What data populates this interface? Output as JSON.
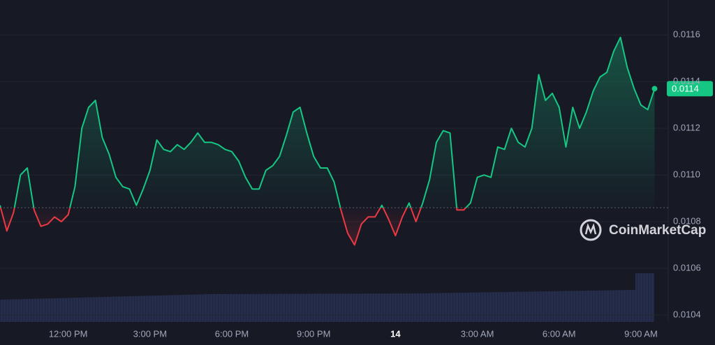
{
  "chart_data": {
    "type": "line",
    "x": [
      9.5,
      9.75,
      10,
      10.25,
      10.5,
      10.75,
      11,
      11.25,
      11.5,
      11.75,
      12,
      12.25,
      12.5,
      12.75,
      13,
      13.25,
      13.5,
      13.75,
      14,
      14.25,
      14.5,
      14.75,
      15,
      15.25,
      15.5,
      15.75,
      16,
      16.25,
      16.5,
      16.75,
      17,
      17.25,
      17.5,
      17.75,
      18,
      18.25,
      18.5,
      18.75,
      19,
      19.25,
      19.5,
      19.75,
      20,
      20.25,
      20.5,
      20.75,
      21,
      21.25,
      21.5,
      21.75,
      22,
      22.25,
      22.5,
      22.75,
      23,
      23.25,
      23.5,
      23.75,
      24,
      24.25,
      24.5,
      24.75,
      25,
      25.25,
      25.5,
      25.75,
      26,
      26.25,
      26.5,
      26.75,
      27,
      27.25,
      27.5,
      27.75,
      28,
      28.25,
      28.5,
      28.75,
      29,
      29.25,
      29.5,
      29.75,
      30,
      30.25,
      30.5,
      30.75,
      31,
      31.25,
      31.5,
      31.75,
      32,
      32.25,
      32.5,
      32.75,
      33,
      33.25,
      33.5
    ],
    "values": [
      0.01087,
      0.01076,
      0.01084,
      0.011,
      0.01103,
      0.01085,
      0.01078,
      0.01079,
      0.01082,
      0.0108,
      0.01083,
      0.01095,
      0.0112,
      0.01129,
      0.01132,
      0.01116,
      0.01109,
      0.01099,
      0.01095,
      0.01094,
      0.01087,
      0.01094,
      0.01102,
      0.01115,
      0.01111,
      0.0111,
      0.01113,
      0.01111,
      0.01114,
      0.01118,
      0.01114,
      0.01114,
      0.01113,
      0.01111,
      0.0111,
      0.01106,
      0.01099,
      0.01094,
      0.01094,
      0.01102,
      0.01104,
      0.01108,
      0.01117,
      0.01127,
      0.01129,
      0.01118,
      0.01108,
      0.01103,
      0.01103,
      0.01097,
      0.01085,
      0.01075,
      0.0107,
      0.01079,
      0.01082,
      0.01082,
      0.01087,
      0.01081,
      0.01074,
      0.01082,
      0.01088,
      0.0108,
      0.01088,
      0.01098,
      0.01114,
      0.01119,
      0.01118,
      0.01085,
      0.01085,
      0.01088,
      0.01099,
      0.011,
      0.01099,
      0.01112,
      0.01111,
      0.0112,
      0.01114,
      0.01112,
      0.0112,
      0.01143,
      0.01132,
      0.01135,
      0.01129,
      0.01112,
      0.01129,
      0.0112,
      0.01127,
      0.01136,
      0.01142,
      0.01144,
      0.01153,
      0.01159,
      0.01146,
      0.01137,
      0.0113,
      0.01128,
      0.01137
    ],
    "value_labels": [
      null,
      null,
      null,
      null,
      null,
      null,
      null,
      null,
      null,
      null,
      null,
      null,
      null,
      null,
      null,
      null,
      null,
      null,
      null,
      null,
      null,
      null,
      null,
      null,
      null,
      null,
      null,
      null,
      null,
      null,
      null,
      null,
      null,
      null,
      null,
      null,
      null,
      null,
      null,
      null,
      null,
      null,
      null,
      null,
      null,
      null,
      null,
      null,
      null,
      null,
      null,
      null,
      null,
      null,
      null,
      null,
      null,
      null,
      null,
      null,
      null,
      null,
      null,
      null,
      null,
      null,
      null,
      null,
      null,
      null,
      null,
      null,
      null,
      null,
      null,
      null,
      null,
      null,
      null,
      null,
      null,
      null,
      null,
      null,
      null,
      null,
      null,
      null,
      null,
      null,
      null,
      null,
      null,
      null,
      null,
      null,
      "0.0114"
    ],
    "baseline": 0.01086,
    "color_up": "#16c784",
    "color_down": "#ea3943",
    "xlim": [
      9.5,
      34
    ],
    "xticks": [
      {
        "value": 12,
        "label": "12:00 PM"
      },
      {
        "value": 15,
        "label": "3:00 PM"
      },
      {
        "value": 18,
        "label": "6:00 PM"
      },
      {
        "value": 21,
        "label": "9:00 PM"
      },
      {
        "value": 24,
        "label": "14"
      },
      {
        "value": 27,
        "label": "3:00 AM"
      },
      {
        "value": 30,
        "label": "6:00 AM"
      },
      {
        "value": 33,
        "label": "9:00 AM"
      }
    ],
    "ylim": [
      0.01037,
      0.01175
    ],
    "yticks": [
      0.0104,
      0.0106,
      0.0108,
      {
        "value": 0.011,
        "label": "0.0110"
      },
      0.0112,
      0.0114,
      0.0116
    ],
    "grid": true,
    "watermark": "CoinMarketCap"
  }
}
